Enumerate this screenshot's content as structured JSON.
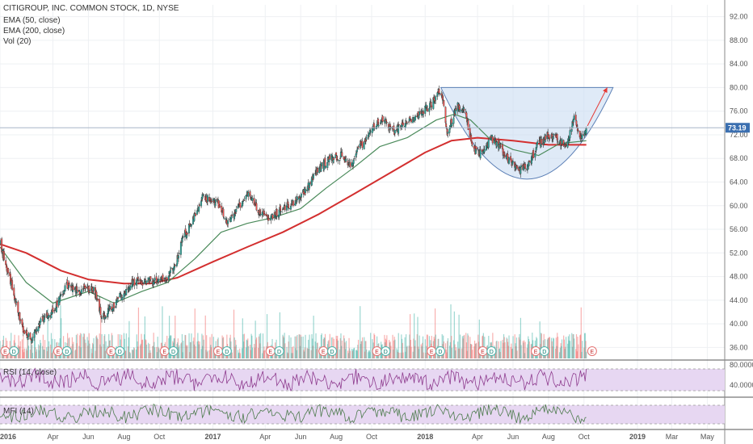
{
  "chart_data": {
    "type": "candlestick",
    "title": "CITIGROUP, INC. COMMON STOCK, 1D, NYSE",
    "indicators": {
      "ema50": "EMA (50, close)",
      "ema200": "EMA (200, close)",
      "vol": "Vol (20)",
      "rsi": "RSI (14, close)",
      "mfi": "MFI (14)"
    },
    "last_price": 73.19,
    "y_ticks": [
      36,
      40,
      44,
      48,
      52,
      56,
      60,
      64,
      68,
      72,
      76,
      80,
      84,
      88,
      92
    ],
    "y_tick_labels": [
      "36.00",
      "40.00",
      "44.00",
      "48.00",
      "52.00",
      "56.00",
      "60.00",
      "64.00",
      "68.00",
      "72.00",
      "76.00",
      "80.00",
      "84.00",
      "88.00",
      "92.00"
    ],
    "ylim": [
      34,
      94
    ],
    "rsi_tick_labels": [
      "80.0000",
      "40.0000"
    ],
    "x_tick_labels": [
      "2016",
      "Apr",
      "Jun",
      "Aug",
      "Oct",
      "2017",
      "Apr",
      "Jun",
      "Aug",
      "Oct",
      "2018",
      "Apr",
      "Jun",
      "Aug",
      "Oct",
      "2019",
      "Mar",
      "May"
    ],
    "x_tick_dates": [
      "2016-01-01",
      "2016-04-01",
      "2016-06-01",
      "2016-08-01",
      "2016-10-01",
      "2017-01-01",
      "2017-04-01",
      "2017-06-01",
      "2017-08-01",
      "2017-10-01",
      "2018-01-01",
      "2018-04-01",
      "2018-06-01",
      "2018-08-01",
      "2018-10-01",
      "2019-01-01",
      "2019-03-01",
      "2019-05-01"
    ],
    "xlim": [
      "2016-01-01",
      "2019-05-31"
    ],
    "price_path": [
      [
        "2016-01-01",
        53.5
      ],
      [
        "2016-01-20",
        47.0
      ],
      [
        "2016-02-10",
        38.5
      ],
      [
        "2016-02-25",
        37.5
      ],
      [
        "2016-03-10",
        40.5
      ],
      [
        "2016-04-01",
        42.0
      ],
      [
        "2016-04-25",
        46.5
      ],
      [
        "2016-05-15",
        45.5
      ],
      [
        "2016-06-10",
        46.0
      ],
      [
        "2016-06-24",
        41.0
      ],
      [
        "2016-07-10",
        42.5
      ],
      [
        "2016-07-25",
        44.5
      ],
      [
        "2016-08-15",
        47.0
      ],
      [
        "2016-09-15",
        47.3
      ],
      [
        "2016-10-10",
        47.5
      ],
      [
        "2016-10-31",
        50.5
      ],
      [
        "2016-11-10",
        54.5
      ],
      [
        "2016-11-25",
        57.0
      ],
      [
        "2016-12-15",
        61.5
      ],
      [
        "2017-01-10",
        60.5
      ],
      [
        "2017-01-25",
        57.0
      ],
      [
        "2017-02-10",
        59.0
      ],
      [
        "2017-03-01",
        62.0
      ],
      [
        "2017-03-20",
        59.0
      ],
      [
        "2017-04-10",
        58.0
      ],
      [
        "2017-05-01",
        59.5
      ],
      [
        "2017-05-20",
        60.5
      ],
      [
        "2017-06-10",
        62.5
      ],
      [
        "2017-07-01",
        66.0
      ],
      [
        "2017-07-20",
        68.0
      ],
      [
        "2017-08-10",
        68.5
      ],
      [
        "2017-08-25",
        67.0
      ],
      [
        "2017-09-15",
        70.5
      ],
      [
        "2017-10-05",
        73.5
      ],
      [
        "2017-10-20",
        74.5
      ],
      [
        "2017-11-10",
        72.5
      ],
      [
        "2017-12-01",
        74.5
      ],
      [
        "2017-12-20",
        75.5
      ],
      [
        "2018-01-10",
        77.0
      ],
      [
        "2018-01-28",
        80.0
      ],
      [
        "2018-02-08",
        72.5
      ],
      [
        "2018-02-25",
        77.0
      ],
      [
        "2018-03-10",
        76.0
      ],
      [
        "2018-03-25",
        69.5
      ],
      [
        "2018-04-10",
        68.5
      ],
      [
        "2018-04-25",
        71.5
      ],
      [
        "2018-05-10",
        70.0
      ],
      [
        "2018-05-25",
        67.5
      ],
      [
        "2018-06-10",
        66.0
      ],
      [
        "2018-06-25",
        66.5
      ],
      [
        "2018-07-15",
        70.5
      ],
      [
        "2018-08-01",
        72.0
      ],
      [
        "2018-08-15",
        71.5
      ],
      [
        "2018-09-01",
        70.0
      ],
      [
        "2018-09-15",
        75.0
      ],
      [
        "2018-09-25",
        71.5
      ],
      [
        "2018-10-05",
        73.19
      ]
    ],
    "ema50": [
      [
        "2016-01-01",
        53.0
      ],
      [
        "2016-02-15",
        47.0
      ],
      [
        "2016-04-01",
        43.5
      ],
      [
        "2016-06-01",
        45.5
      ],
      [
        "2016-07-15",
        43.5
      ],
      [
        "2016-09-01",
        45.5
      ],
      [
        "2016-10-15",
        47.0
      ],
      [
        "2016-12-01",
        51.0
      ],
      [
        "2017-01-15",
        55.5
      ],
      [
        "2017-03-01",
        57.0
      ],
      [
        "2017-04-15",
        58.0
      ],
      [
        "2017-06-01",
        59.5
      ],
      [
        "2017-07-15",
        63.0
      ],
      [
        "2017-09-01",
        66.5
      ],
      [
        "2017-10-15",
        70.0
      ],
      [
        "2017-12-01",
        71.5
      ],
      [
        "2018-01-20",
        74.5
      ],
      [
        "2018-02-20",
        75.5
      ],
      [
        "2018-03-20",
        74.5
      ],
      [
        "2018-04-20",
        71.5
      ],
      [
        "2018-06-01",
        69.5
      ],
      [
        "2018-07-15",
        68.5
      ],
      [
        "2018-08-20",
        70.5
      ],
      [
        "2018-10-05",
        71.0
      ]
    ],
    "ema200": [
      [
        "2016-01-01",
        53.5
      ],
      [
        "2016-02-15",
        52.0
      ],
      [
        "2016-04-15",
        49.0
      ],
      [
        "2016-06-01",
        47.5
      ],
      [
        "2016-08-01",
        46.8
      ],
      [
        "2016-09-15",
        46.8
      ],
      [
        "2016-11-01",
        47.8
      ],
      [
        "2017-01-01",
        50.5
      ],
      [
        "2017-03-01",
        53.0
      ],
      [
        "2017-05-01",
        55.5
      ],
      [
        "2017-07-01",
        58.5
      ],
      [
        "2017-09-01",
        62.0
      ],
      [
        "2017-11-01",
        65.5
      ],
      [
        "2018-01-01",
        69.0
      ],
      [
        "2018-02-15",
        71.0
      ],
      [
        "2018-04-01",
        71.5
      ],
      [
        "2018-06-01",
        71.0
      ],
      [
        "2018-08-01",
        70.3
      ],
      [
        "2018-10-05",
        70.3
      ]
    ],
    "cup_pattern": {
      "left": [
        "2018-01-28",
        80.0
      ],
      "bottom": [
        "2018-06-25",
        64.5
      ],
      "right": [
        "2018-11-20",
        80.0
      ]
    },
    "trend_arrow": {
      "start": [
        "2018-10-07",
        73.5
      ],
      "end": [
        "2018-11-10",
        80.0
      ]
    },
    "earnings_markers": [
      {
        "date": "2016-01-10",
        "label": "E"
      },
      {
        "date": "2016-01-25",
        "label": "D"
      },
      {
        "date": "2016-04-10",
        "label": "E"
      },
      {
        "date": "2016-04-25",
        "label": "D"
      },
      {
        "date": "2016-07-10",
        "label": "E"
      },
      {
        "date": "2016-07-25",
        "label": "D"
      },
      {
        "date": "2016-10-10",
        "label": "E"
      },
      {
        "date": "2016-10-25",
        "label": "D"
      },
      {
        "date": "2017-01-10",
        "label": "E"
      },
      {
        "date": "2017-01-25",
        "label": "D"
      },
      {
        "date": "2017-04-10",
        "label": "E"
      },
      {
        "date": "2017-04-25",
        "label": "D"
      },
      {
        "date": "2017-07-10",
        "label": "E"
      },
      {
        "date": "2017-07-25",
        "label": "D"
      },
      {
        "date": "2017-10-10",
        "label": "E"
      },
      {
        "date": "2017-10-25",
        "label": "D"
      },
      {
        "date": "2018-01-12",
        "label": "E"
      },
      {
        "date": "2018-01-27",
        "label": "D"
      },
      {
        "date": "2018-04-10",
        "label": "E"
      },
      {
        "date": "2018-04-25",
        "label": "D"
      },
      {
        "date": "2018-07-10",
        "label": "E"
      },
      {
        "date": "2018-07-25",
        "label": "D"
      },
      {
        "date": "2018-10-15",
        "label": "E"
      }
    ],
    "colors": {
      "up": "#26a69a",
      "down": "#ef5350",
      "ema50": "#4a8a5a",
      "ema200": "#d32f2f",
      "cup_fill": "#c9dcf2",
      "cup_stroke": "#5b7fb5",
      "arrow": "#e53935",
      "last_price_tag": "#3b6fb0",
      "rsi_line": "#8e3b8e",
      "rsi_band": "#e7d7f2",
      "mfi_line": "#4d7b4d",
      "mfi_band": "#e7d7f2"
    }
  }
}
